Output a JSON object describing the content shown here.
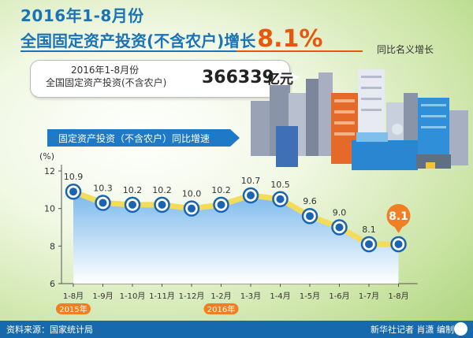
{
  "header": {
    "title_line1": "2016年1-8月份",
    "title_line2": "全国固定资产投资(不含农户)增长",
    "title_highlight": "8.1%",
    "yoy_note": "同比名义增长"
  },
  "summary": {
    "period": "2016年1-8月份",
    "label": "全国固定资产投资(不含农户)",
    "value": "366339",
    "unit": "亿元"
  },
  "chart_title": "固定资产投资（不含农户）同比增速",
  "footer": {
    "source": "资料来源：国家统计局",
    "credit": "新华社记者 肖潇 编制"
  },
  "chart_data": {
    "type": "area",
    "title": "固定资产投资（不含农户）同比增速",
    "ylabel": "(%)",
    "ylim": [
      6,
      12
    ],
    "yticks": [
      6,
      8,
      10,
      12
    ],
    "categories": [
      "1-8月",
      "1-9月",
      "1-10月",
      "1-11月",
      "1-12月",
      "1-2月",
      "1-3月",
      "1-4月",
      "1-5月",
      "1-6月",
      "1-7月",
      "1-8月"
    ],
    "values": [
      10.9,
      10.3,
      10.2,
      10.2,
      10.0,
      10.2,
      10.7,
      10.5,
      9.6,
      9.0,
      8.1,
      8.1
    ],
    "data_labels": [
      "10.9",
      "10.3",
      "10.2",
      "10.2",
      "10.0",
      "10.2",
      "10.7",
      "10.5",
      "9.6",
      "9.0",
      "8.1",
      "8.1"
    ],
    "year_groups": [
      {
        "label": "2015年",
        "start": 0,
        "end": 4
      },
      {
        "label": "2016年",
        "start": 5,
        "end": 11
      }
    ],
    "highlight_index": 11,
    "colors": {
      "line": "#f3db5c",
      "marker": "#1a64b0",
      "highlight": "#f07f23",
      "area_top": "#7ab8ec",
      "area_bottom": "#ffffff",
      "year_badge": "#f07f23"
    }
  }
}
